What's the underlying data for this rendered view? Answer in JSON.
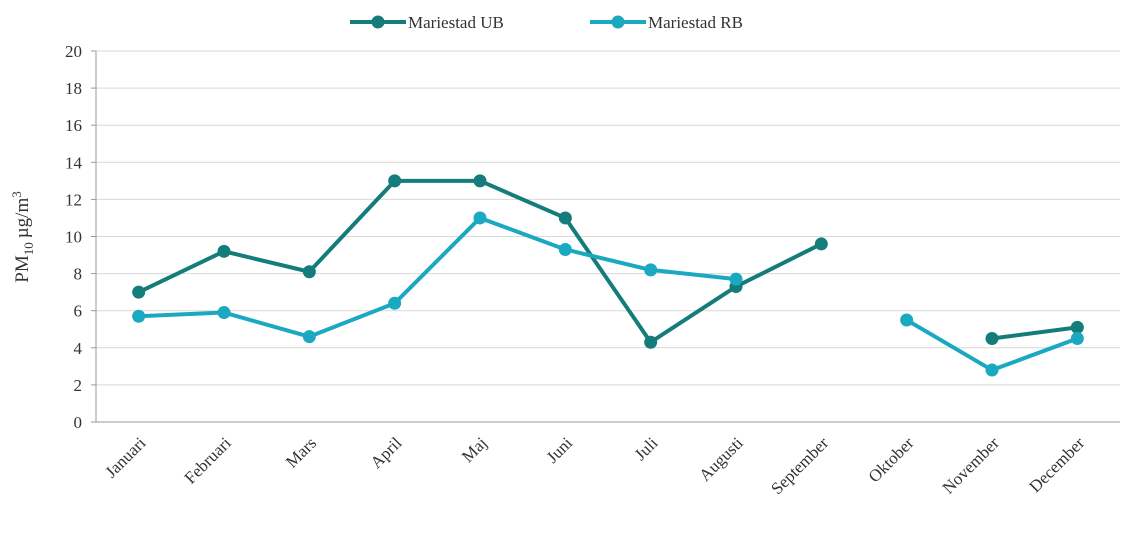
{
  "chart_data": {
    "type": "line",
    "ylabel": {
      "base": "PM",
      "sub": "10",
      "unit": "µg/m",
      "sup": "3"
    },
    "categories": [
      "Januari",
      "Februari",
      "Mars",
      "April",
      "Maj",
      "Juni",
      "Juli",
      "Augusti",
      "September",
      "Oktober",
      "November",
      "December"
    ],
    "series": [
      {
        "name": "Mariestad UB",
        "color": "#147d7b",
        "values": [
          7,
          9.2,
          8.1,
          13,
          13,
          11,
          4.3,
          7.3,
          9.6,
          null,
          4.5,
          5.1
        ]
      },
      {
        "name": "Mariestad RB",
        "color": "#1ba8c1",
        "values": [
          5.7,
          5.9,
          4.6,
          6.4,
          11,
          9.3,
          8.2,
          7.7,
          null,
          5.5,
          2.8,
          4.5
        ]
      }
    ],
    "ylim": [
      0,
      20
    ],
    "yticks": [
      0,
      2,
      4,
      6,
      8,
      10,
      12,
      14,
      16,
      18,
      20
    ],
    "grid": true,
    "legend": "top"
  }
}
